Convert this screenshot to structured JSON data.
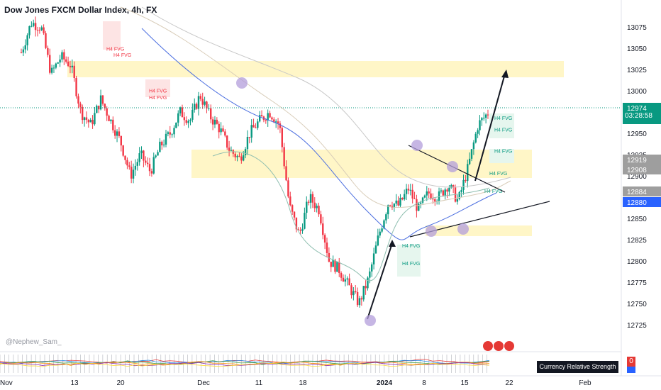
{
  "header": {
    "title": "Dow Jones FXCM Dollar Index, 4h, FX"
  },
  "watermark": "@Nephew_Sam_",
  "indicator": {
    "label": "Currency Relative Strength (D)",
    "value": "0"
  },
  "countdown": "03:28:58",
  "colors": {
    "up": "#089981",
    "down": "#f23645",
    "zone": "#fff6c7",
    "accent_blue": "#2962ff",
    "circle": "#b39ddb"
  },
  "chart_data": {
    "type": "candlestick",
    "y_axis": {
      "range": [
        12715,
        13090
      ],
      "ticks": [
        13075,
        13050,
        13025,
        13000,
        12950,
        12925,
        12900,
        12850,
        12825,
        12800,
        12775,
        12750,
        12725
      ]
    },
    "x_axis": {
      "ticks": [
        "Nov",
        "13",
        "20",
        "Dec",
        "11",
        "18",
        "2024",
        "8",
        "15",
        "22",
        "Feb"
      ]
    },
    "price_labels": [
      {
        "value": "12974",
        "style": "green"
      },
      {
        "value": "12919",
        "style": "grey"
      },
      {
        "value": "12908",
        "style": "grey"
      },
      {
        "value": "12884",
        "style": "grey"
      },
      {
        "value": "12880",
        "style": "blue"
      }
    ],
    "close_path": [
      13045,
      13080,
      13075,
      13020,
      13040,
      13030,
      12975,
      12960,
      12990,
      12965,
      12940,
      12900,
      12925,
      12905,
      12935,
      12950,
      12975,
      12965,
      12995,
      12970,
      12955,
      12930,
      12920,
      12950,
      12965,
      12975,
      12960,
      12865,
      12830,
      12875,
      12860,
      12800,
      12790,
      12770,
      12750,
      12780,
      12830,
      12870,
      12865,
      12885,
      12860,
      12880,
      12875,
      12890,
      12870,
      12910,
      12960,
      12974
    ],
    "fvg_labels": [
      {
        "text": "H4 FVG",
        "kind": "bearish",
        "x": 150,
        "price": 13047
      },
      {
        "text": "H4 FVG",
        "kind": "bearish",
        "x": 160,
        "price": 13040
      },
      {
        "text": "H4 FVG",
        "kind": "bearish",
        "x": 210,
        "price": 12998
      },
      {
        "text": "H4 FVG",
        "kind": "bearish",
        "x": 210,
        "price": 12990
      },
      {
        "text": "H4 FVG",
        "kind": "bullish",
        "x": 697,
        "price": 12966
      },
      {
        "text": "H4 FVG",
        "kind": "bullish",
        "x": 697,
        "price": 12952
      },
      {
        "text": "H4 FVG",
        "kind": "bullish",
        "x": 697,
        "price": 12927
      },
      {
        "text": "H4 FVG",
        "kind": "bullish",
        "x": 690,
        "price": 12901
      },
      {
        "text": "H4 FVG",
        "kind": "bullish",
        "x": 683,
        "price": 12880
      },
      {
        "text": "H4 FVG",
        "kind": "bullish",
        "x": 567,
        "price": 12816
      },
      {
        "text": "H4 FVG",
        "kind": "bullish",
        "x": 567,
        "price": 12795
      }
    ]
  }
}
